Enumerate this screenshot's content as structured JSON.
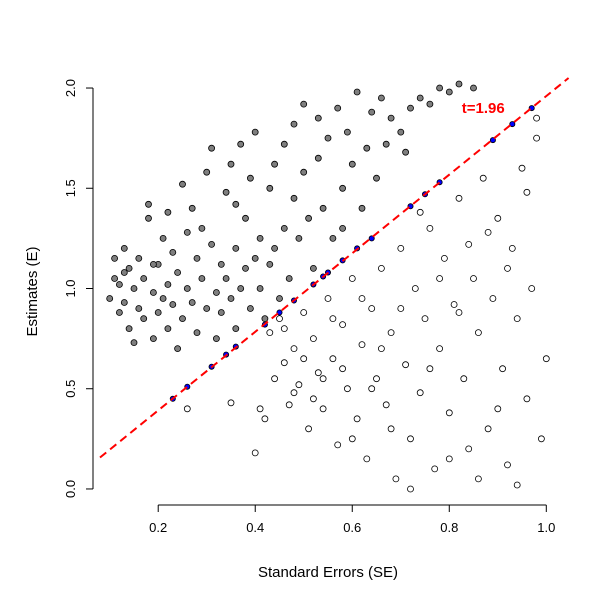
{
  "chart_data": {
    "type": "scatter",
    "title": "",
    "xlabel": "Standard Errors (SE)",
    "ylabel": "Estimates (E)",
    "xlim": [
      0.08,
      1.02
    ],
    "ylim": [
      -0.08,
      2.05
    ],
    "x_ticks": [
      "0.2",
      "0.4",
      "0.6",
      "0.8",
      "1.0"
    ],
    "y_ticks": [
      "0.0",
      "0.5",
      "1.0",
      "1.5",
      "2.0"
    ],
    "grid": false,
    "threshold_line": {
      "label": "t=1.96",
      "slope": 1.96,
      "intercept": 0,
      "color": "#ff0000",
      "style": "dashed",
      "label_x": 0.87,
      "label_y": 1.9
    },
    "colors": {
      "significant": "#7f7f7f",
      "not_significant": "#ffffff",
      "on_line": "#0000ff",
      "outline": "#000000"
    },
    "significant_points": [
      [
        0.1,
        0.95
      ],
      [
        0.11,
        1.05
      ],
      [
        0.11,
        1.15
      ],
      [
        0.12,
        0.88
      ],
      [
        0.12,
        1.02
      ],
      [
        0.13,
        1.2
      ],
      [
        0.13,
        0.93
      ],
      [
        0.14,
        0.8
      ],
      [
        0.14,
        1.1
      ],
      [
        0.15,
        1.0
      ],
      [
        0.15,
        0.73
      ],
      [
        0.16,
        1.15
      ],
      [
        0.16,
        0.9
      ],
      [
        0.17,
        1.05
      ],
      [
        0.17,
        0.85
      ],
      [
        0.18,
        1.35
      ],
      [
        0.18,
        1.42
      ],
      [
        0.19,
        0.98
      ],
      [
        0.19,
        0.75
      ],
      [
        0.2,
        1.12
      ],
      [
        0.2,
        0.88
      ],
      [
        0.21,
        1.25
      ],
      [
        0.21,
        0.95
      ],
      [
        0.22,
        1.02
      ],
      [
        0.22,
        0.8
      ],
      [
        0.23,
        1.18
      ],
      [
        0.23,
        0.92
      ],
      [
        0.24,
        0.7
      ],
      [
        0.24,
        1.08
      ],
      [
        0.25,
        1.52
      ],
      [
        0.25,
        0.85
      ],
      [
        0.26,
        1.28
      ],
      [
        0.26,
        1.0
      ],
      [
        0.27,
        0.93
      ],
      [
        0.28,
        1.15
      ],
      [
        0.28,
        0.78
      ],
      [
        0.29,
        1.05
      ],
      [
        0.29,
        1.3
      ],
      [
        0.3,
        0.9
      ],
      [
        0.3,
        1.58
      ],
      [
        0.31,
        1.22
      ],
      [
        0.31,
        1.7
      ],
      [
        0.32,
        0.98
      ],
      [
        0.32,
        0.75
      ],
      [
        0.33,
        1.12
      ],
      [
        0.33,
        0.88
      ],
      [
        0.34,
        1.05
      ],
      [
        0.34,
        1.48
      ],
      [
        0.35,
        1.62
      ],
      [
        0.35,
        0.95
      ],
      [
        0.36,
        1.2
      ],
      [
        0.36,
        0.8
      ],
      [
        0.37,
        1.0
      ],
      [
        0.37,
        1.72
      ],
      [
        0.38,
        1.1
      ],
      [
        0.38,
        1.35
      ],
      [
        0.39,
        0.9
      ],
      [
        0.39,
        1.55
      ],
      [
        0.4,
        1.78
      ],
      [
        0.4,
        1.15
      ],
      [
        0.41,
        1.0
      ],
      [
        0.41,
        1.25
      ],
      [
        0.42,
        0.85
      ],
      [
        0.43,
        1.12
      ],
      [
        0.43,
        1.5
      ],
      [
        0.44,
        1.2
      ],
      [
        0.44,
        1.62
      ],
      [
        0.45,
        0.95
      ],
      [
        0.46,
        1.3
      ],
      [
        0.46,
        1.72
      ],
      [
        0.47,
        1.05
      ],
      [
        0.48,
        1.82
      ],
      [
        0.48,
        1.45
      ],
      [
        0.49,
        1.25
      ],
      [
        0.5,
        1.92
      ],
      [
        0.5,
        1.58
      ],
      [
        0.51,
        1.35
      ],
      [
        0.52,
        1.1
      ],
      [
        0.53,
        1.65
      ],
      [
        0.53,
        1.85
      ],
      [
        0.54,
        1.4
      ],
      [
        0.55,
        1.75
      ],
      [
        0.56,
        1.25
      ],
      [
        0.57,
        1.9
      ],
      [
        0.58,
        1.5
      ],
      [
        0.58,
        1.3
      ],
      [
        0.59,
        1.78
      ],
      [
        0.6,
        1.62
      ],
      [
        0.61,
        1.98
      ],
      [
        0.62,
        1.4
      ],
      [
        0.63,
        1.7
      ],
      [
        0.64,
        1.88
      ],
      [
        0.65,
        1.55
      ],
      [
        0.66,
        1.95
      ],
      [
        0.67,
        1.72
      ],
      [
        0.68,
        1.85
      ],
      [
        0.7,
        1.78
      ],
      [
        0.71,
        1.68
      ],
      [
        0.72,
        1.9
      ],
      [
        0.74,
        1.95
      ],
      [
        0.76,
        1.92
      ],
      [
        0.78,
        2.0
      ],
      [
        0.8,
        1.98
      ],
      [
        0.82,
        2.02
      ],
      [
        0.85,
        2.0
      ],
      [
        0.13,
        1.08
      ],
      [
        0.19,
        1.12
      ],
      [
        0.27,
        1.4
      ],
      [
        0.22,
        1.38
      ],
      [
        0.36,
        1.42
      ]
    ],
    "not_significant_points": [
      [
        0.26,
        0.4
      ],
      [
        0.35,
        0.43
      ],
      [
        0.4,
        0.18
      ],
      [
        0.41,
        0.4
      ],
      [
        0.42,
        0.35
      ],
      [
        0.43,
        0.78
      ],
      [
        0.44,
        0.55
      ],
      [
        0.45,
        0.85
      ],
      [
        0.46,
        0.63
      ],
      [
        0.47,
        0.42
      ],
      [
        0.48,
        0.7
      ],
      [
        0.49,
        0.52
      ],
      [
        0.5,
        0.88
      ],
      [
        0.51,
        0.3
      ],
      [
        0.52,
        0.75
      ],
      [
        0.53,
        0.58
      ],
      [
        0.54,
        0.4
      ],
      [
        0.55,
        0.95
      ],
      [
        0.56,
        0.65
      ],
      [
        0.57,
        0.22
      ],
      [
        0.58,
        0.82
      ],
      [
        0.59,
        0.5
      ],
      [
        0.6,
        1.05
      ],
      [
        0.61,
        0.35
      ],
      [
        0.62,
        0.72
      ],
      [
        0.63,
        0.15
      ],
      [
        0.64,
        0.9
      ],
      [
        0.65,
        0.55
      ],
      [
        0.66,
        1.1
      ],
      [
        0.67,
        0.42
      ],
      [
        0.68,
        0.78
      ],
      [
        0.69,
        0.05
      ],
      [
        0.7,
        1.2
      ],
      [
        0.71,
        0.62
      ],
      [
        0.72,
        0.25
      ],
      [
        0.73,
        1.0
      ],
      [
        0.74,
        0.48
      ],
      [
        0.75,
        0.85
      ],
      [
        0.76,
        1.3
      ],
      [
        0.77,
        0.1
      ],
      [
        0.78,
        0.7
      ],
      [
        0.79,
        1.15
      ],
      [
        0.8,
        0.38
      ],
      [
        0.81,
        0.92
      ],
      [
        0.82,
        1.45
      ],
      [
        0.83,
        0.55
      ],
      [
        0.84,
        0.2
      ],
      [
        0.85,
        1.05
      ],
      [
        0.86,
        0.78
      ],
      [
        0.87,
        1.55
      ],
      [
        0.88,
        0.3
      ],
      [
        0.89,
        0.95
      ],
      [
        0.9,
        1.35
      ],
      [
        0.91,
        0.6
      ],
      [
        0.92,
        0.12
      ],
      [
        0.93,
        1.2
      ],
      [
        0.94,
        0.85
      ],
      [
        0.95,
        1.6
      ],
      [
        0.96,
        0.45
      ],
      [
        0.97,
        1.0
      ],
      [
        0.98,
        1.75
      ],
      [
        0.99,
        0.25
      ],
      [
        1.0,
        0.65
      ],
      [
        0.98,
        1.85
      ],
      [
        0.96,
        1.48
      ],
      [
        0.94,
        0.02
      ],
      [
        0.92,
        1.1
      ],
      [
        0.9,
        0.4
      ],
      [
        0.88,
        1.28
      ],
      [
        0.86,
        0.05
      ],
      [
        0.84,
        1.22
      ],
      [
        0.82,
        0.88
      ],
      [
        0.8,
        0.15
      ],
      [
        0.78,
        1.05
      ],
      [
        0.76,
        0.6
      ],
      [
        0.74,
        1.38
      ],
      [
        0.72,
        0.0
      ],
      [
        0.7,
        0.9
      ],
      [
        0.68,
        0.3
      ],
      [
        0.66,
        0.7
      ],
      [
        0.64,
        0.5
      ],
      [
        0.62,
        0.95
      ],
      [
        0.6,
        0.25
      ],
      [
        0.58,
        0.6
      ],
      [
        0.56,
        0.85
      ],
      [
        0.54,
        0.55
      ],
      [
        0.52,
        0.45
      ],
      [
        0.5,
        0.65
      ],
      [
        0.48,
        0.48
      ],
      [
        0.46,
        0.8
      ]
    ],
    "on_line_points": [
      [
        0.23,
        0.45
      ],
      [
        0.26,
        0.51
      ],
      [
        0.31,
        0.61
      ],
      [
        0.34,
        0.67
      ],
      [
        0.36,
        0.71
      ],
      [
        0.42,
        0.82
      ],
      [
        0.45,
        0.88
      ],
      [
        0.48,
        0.94
      ],
      [
        0.52,
        1.02
      ],
      [
        0.54,
        1.06
      ],
      [
        0.55,
        1.08
      ],
      [
        0.58,
        1.14
      ],
      [
        0.61,
        1.2
      ],
      [
        0.64,
        1.25
      ],
      [
        0.72,
        1.41
      ],
      [
        0.75,
        1.47
      ],
      [
        0.78,
        1.53
      ],
      [
        0.89,
        1.74
      ],
      [
        0.93,
        1.82
      ],
      [
        0.97,
        1.9
      ]
    ]
  }
}
